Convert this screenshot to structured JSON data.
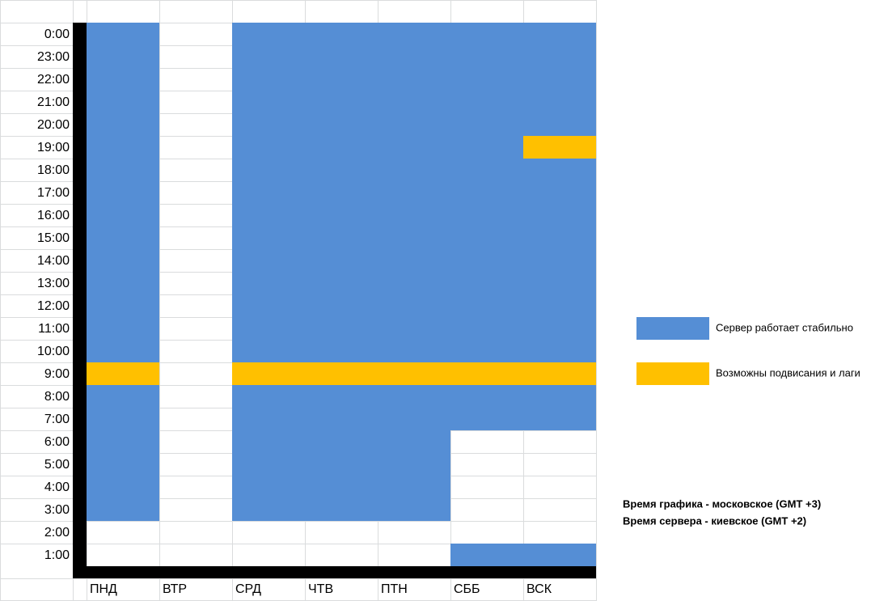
{
  "chart_data": {
    "type": "schedule-grid",
    "hours": [
      "0:00",
      "23:00",
      "22:00",
      "21:00",
      "20:00",
      "19:00",
      "18:00",
      "17:00",
      "16:00",
      "15:00",
      "14:00",
      "13:00",
      "12:00",
      "11:00",
      "10:00",
      "9:00",
      "8:00",
      "7:00",
      "6:00",
      "5:00",
      "4:00",
      "3:00",
      "2:00",
      "1:00"
    ],
    "days": [
      "ПНД",
      "ВТР",
      "СРД",
      "ЧТВ",
      "ПТН",
      "СББ",
      "ВСК"
    ],
    "legend": [
      {
        "name": "Сервер работает стабильно",
        "color": "#558ed5"
      },
      {
        "name": "Возможны подвисания и лаги",
        "color": "#ffc000"
      }
    ],
    "values": [
      [
        0,
        0,
        0,
        0,
        0,
        0,
        0,
        0,
        0,
        0,
        0,
        0,
        0,
        0,
        0,
        1,
        0,
        0,
        0,
        0,
        0,
        0,
        null,
        null
      ],
      [
        null,
        null,
        null,
        null,
        null,
        null,
        null,
        null,
        null,
        null,
        null,
        null,
        null,
        null,
        null,
        null,
        null,
        null,
        null,
        null,
        null,
        null,
        null,
        null
      ],
      [
        0,
        0,
        0,
        0,
        0,
        0,
        0,
        0,
        0,
        0,
        0,
        0,
        0,
        0,
        0,
        1,
        0,
        0,
        0,
        0,
        0,
        0,
        null,
        null
      ],
      [
        0,
        0,
        0,
        0,
        0,
        0,
        0,
        0,
        0,
        0,
        0,
        0,
        0,
        0,
        0,
        1,
        0,
        0,
        0,
        0,
        0,
        0,
        null,
        null
      ],
      [
        0,
        0,
        0,
        0,
        0,
        0,
        0,
        0,
        0,
        0,
        0,
        0,
        0,
        0,
        0,
        1,
        0,
        0,
        0,
        0,
        0,
        0,
        null,
        null
      ],
      [
        0,
        0,
        0,
        0,
        0,
        0,
        0,
        0,
        0,
        0,
        0,
        0,
        0,
        0,
        0,
        1,
        0,
        0,
        null,
        null,
        null,
        null,
        null,
        0
      ],
      [
        0,
        0,
        0,
        0,
        0,
        1,
        0,
        0,
        0,
        0,
        0,
        0,
        0,
        0,
        0,
        1,
        0,
        0,
        null,
        null,
        null,
        null,
        null,
        0
      ]
    ]
  },
  "notes": [
    "Время графика - московское (GMT +3)",
    "Время сервера - киевское (GMT +2)"
  ]
}
